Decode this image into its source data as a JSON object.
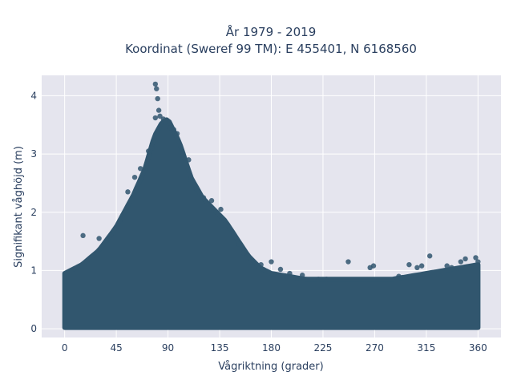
{
  "chart_data": {
    "type": "scatter",
    "title_lines": [
      "År 1979 - 2019",
      "Koordinat (Sweref 99 TM): E 455401, N 6168560"
    ],
    "xlabel": "Vågriktning (grader)",
    "ylabel": "Signifikant våghöjd (m)",
    "xlim": [
      -20,
      380
    ],
    "ylim": [
      -0.15,
      4.35
    ],
    "x_ticks": [
      0,
      45,
      90,
      135,
      180,
      225,
      270,
      315,
      360
    ],
    "y_ticks": [
      0,
      1,
      2,
      3,
      4
    ],
    "grid": true,
    "legend": "none",
    "colors": {
      "plot_bg": "#e5e5ee",
      "grid": "#ffffff",
      "marker": "#31566e",
      "text": "#2a3f5f"
    },
    "envelope": {
      "x": [
        0,
        15,
        30,
        45,
        60,
        70,
        78,
        85,
        90,
        95,
        100,
        105,
        110,
        120,
        130,
        140,
        150,
        160,
        170,
        180,
        195,
        210,
        225,
        240,
        255,
        270,
        285,
        300,
        315,
        330,
        345,
        360
      ],
      "y_upper": [
        0.95,
        1.1,
        1.35,
        1.75,
        2.3,
        2.75,
        3.3,
        3.55,
        3.6,
        3.4,
        3.2,
        2.9,
        2.6,
        2.25,
        2.05,
        1.85,
        1.55,
        1.25,
        1.05,
        0.95,
        0.9,
        0.85,
        0.85,
        0.85,
        0.85,
        0.85,
        0.85,
        0.9,
        0.95,
        1.0,
        1.05,
        1.1
      ],
      "y_lower": [
        0.02,
        0.02,
        0.02,
        0.02,
        0.02,
        0.02,
        0.02,
        0.02,
        0.02,
        0.02,
        0.02,
        0.02,
        0.02,
        0.02,
        0.02,
        0.02,
        0.02,
        0.02,
        0.02,
        0.02,
        0.02,
        0.02,
        0.02,
        0.02,
        0.02,
        0.02,
        0.02,
        0.02,
        0.02,
        0.02,
        0.02,
        0.02
      ],
      "x_sampled": [
        0,
        360
      ]
    },
    "outliers": {
      "x": [
        79,
        80,
        81,
        82,
        79,
        86,
        88,
        83,
        92,
        95,
        98,
        73,
        76,
        66,
        61,
        55,
        110,
        115,
        121,
        128,
        136,
        140,
        147,
        152,
        156,
        162,
        171,
        180,
        188,
        196,
        207,
        221,
        228,
        247,
        266,
        269,
        291,
        300,
        307,
        311,
        318,
        333,
        337,
        345,
        349,
        358,
        360,
        16,
        30,
        40,
        48,
        102,
        108
      ],
      "y": [
        4.2,
        4.12,
        3.95,
        3.75,
        3.62,
        3.6,
        3.55,
        3.65,
        3.45,
        3.42,
        3.35,
        3.05,
        3.1,
        2.75,
        2.6,
        2.35,
        2.55,
        2.4,
        2.25,
        2.2,
        2.05,
        1.75,
        1.6,
        1.45,
        1.3,
        1.15,
        1.1,
        1.15,
        1.02,
        0.95,
        0.92,
        0.85,
        0.85,
        1.15,
        1.05,
        1.08,
        0.9,
        1.1,
        1.05,
        1.08,
        1.25,
        1.08,
        1.05,
        1.15,
        1.2,
        1.22,
        1.15,
        1.6,
        1.55,
        1.6,
        1.85,
        3.05,
        2.9
      ]
    }
  }
}
